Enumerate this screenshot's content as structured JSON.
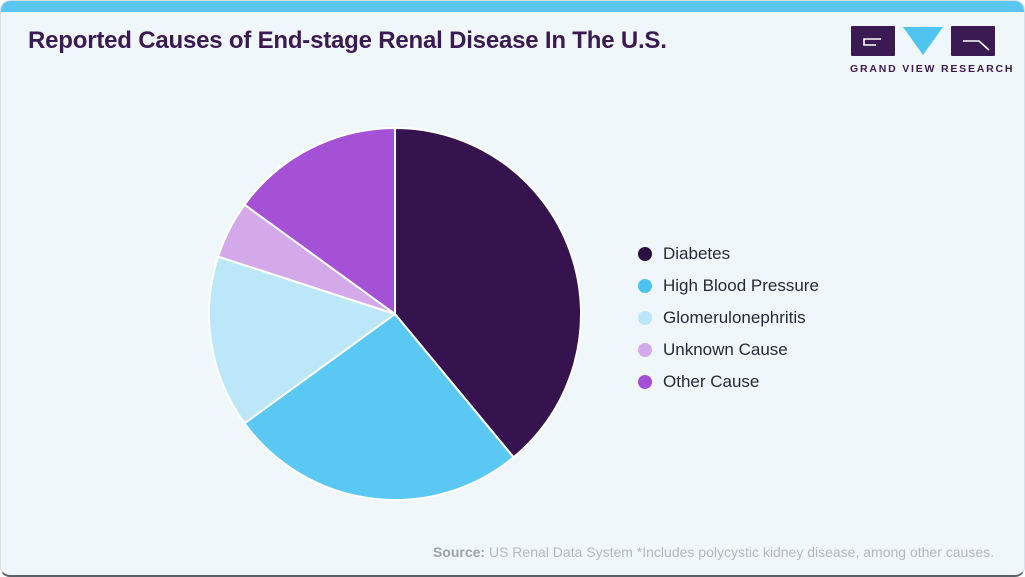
{
  "card": {
    "title": "Reported Causes of End-stage Renal Disease In The U.S.",
    "accent_bar_color": "#5bc6f0",
    "background_color": "#f0f7fb",
    "title_color": "#3b1a54",
    "bottom_edge_color": "#5a6167"
  },
  "logo": {
    "name": "Grand View Research",
    "text": "GRAND VIEW RESEARCH",
    "dark_color": "#3b1a54",
    "cyan_color": "#4fc4ef"
  },
  "chart_data": {
    "type": "pie",
    "title": "Reported Causes of End-stage Renal Disease In The U.S.",
    "start_angle_deg": 0,
    "direction": "clockwise",
    "legend_position": "right",
    "separator_color": "#ffffff",
    "slices": [
      {
        "label": "Diabetes",
        "value_pct": 39,
        "color": "#36124e",
        "legend_dot_color": "#2a0f42"
      },
      {
        "label": "High Blood Pressure",
        "value_pct": 26,
        "color": "#5bc8f3",
        "legend_dot_color": "#4fc3f0"
      },
      {
        "label": "Glomerulonephritis",
        "value_pct": 15,
        "color": "#bce7f8",
        "legend_dot_color": "#b9e6f9"
      },
      {
        "label": "Unknown Cause",
        "value_pct": 5,
        "color": "#d4a9ea",
        "legend_dot_color": "#d4a9ec"
      },
      {
        "label": "Other Cause",
        "value_pct": 15,
        "color": "#a551d6",
        "legend_dot_color": "#a44fd8"
      }
    ]
  },
  "footer": {
    "source_label": "Source:",
    "source_text": " US Renal Data System *Includes polycystic kidney disease, among other causes."
  }
}
